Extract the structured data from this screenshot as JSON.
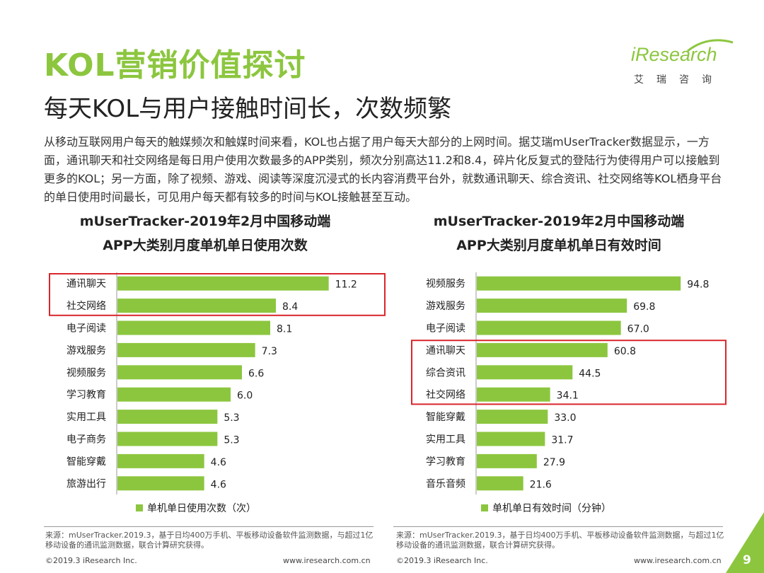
{
  "header": {
    "title": "KOL营销价值探讨",
    "subtitle": "每天KOL与用户接触时间长，次数频繁",
    "logo_text": "iResearch",
    "logo_sub": "艾瑞咨询"
  },
  "intro": "从移动互联网用户每天的触媒频次和触媒时间来看，KOL也占据了用户每天大部分的上网时间。据艾瑞mUserTracker数据显示，一方面，通讯聊天和社交网络是每日用户使用次数最多的APP类别，频次分别高达11.2和8.4，碎片化反复式的登陆行为使得用户可以接触到更多的KOL；另一方面，除了视频、游戏、阅读等深度沉浸式的长内容消费平台外，就数通讯聊天、综合资讯、社交网络等KOL栖身平台的单日使用时间最长，可见用户每天都有较多的时间与KOL接触甚至互动。",
  "colors": {
    "accent": "#8cc63f",
    "highlight": "#d9262c"
  },
  "chart_data": [
    {
      "type": "bar",
      "orientation": "horizontal",
      "title_line1": "mUserTracker-2019年2月中国移动端",
      "title_line2": "APP大类别月度单机单日使用次数",
      "categories": [
        "通讯聊天",
        "社交网络",
        "电子阅读",
        "游戏服务",
        "视频服务",
        "学习教育",
        "实用工具",
        "电子商务",
        "智能穿戴",
        "旅游出行"
      ],
      "series": [
        {
          "name": "单机单日使用次数（次）",
          "values": [
            11.2,
            8.4,
            8.1,
            7.3,
            6.6,
            6.0,
            5.3,
            5.3,
            4.6,
            4.6
          ]
        }
      ],
      "labels": [
        "11.2",
        "8.4",
        "8.1",
        "7.3",
        "6.6",
        "6.0",
        "5.3",
        "5.3",
        "4.6",
        "4.6"
      ],
      "highlighted": [
        "通讯聊天",
        "社交网络"
      ],
      "xlim": [
        0,
        12
      ],
      "legend": "bottom"
    },
    {
      "type": "bar",
      "orientation": "horizontal",
      "title_line1": "mUserTracker-2019年2月中国移动端",
      "title_line2": "APP大类别月度单机单日有效时间",
      "categories": [
        "视频服务",
        "游戏服务",
        "电子阅读",
        "通讯聊天",
        "综合资讯",
        "社交网络",
        "智能穿戴",
        "实用工具",
        "学习教育",
        "音乐音频"
      ],
      "series": [
        {
          "name": "单机单日有效时间（分钟）",
          "values": [
            94.8,
            69.8,
            67.0,
            60.8,
            44.5,
            34.1,
            33.0,
            31.7,
            27.9,
            21.6
          ]
        }
      ],
      "labels": [
        "94.8",
        "69.8",
        "67.0",
        "60.8",
        "44.5",
        "34.1",
        "33.0",
        "31.7",
        "27.9",
        "21.6"
      ],
      "highlighted": [
        "通讯聊天",
        "综合资讯",
        "社交网络"
      ],
      "xlim": [
        0,
        100
      ],
      "legend": "bottom"
    }
  ],
  "sources": {
    "left": "来源：mUserTracker.2019.3，基于日均400万手机、平板移动设备软件监测数据，与超过1亿移动设备的通讯监测数据，联合计算研究获得。",
    "right": "来源：mUserTracker.2019.3，基于日均400万手机、平板移动设备软件监测数据，与超过1亿移动设备的通讯监测数据，联合计算研究获得。"
  },
  "footer": {
    "copyright": "©2019.3 iResearch Inc.",
    "url": "www.iresearch.com.cn",
    "page": "9"
  }
}
